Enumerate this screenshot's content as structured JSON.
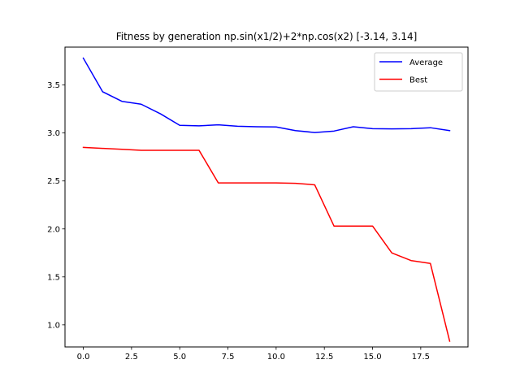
{
  "chart_data": {
    "type": "line",
    "title": "Fitness by generation np.sin(x1/2)+2*np.cos(x2) [-3.14, 3.14]",
    "xlabel": "",
    "ylabel": "",
    "xlim": [
      -0.95,
      19.95
    ],
    "ylim": [
      0.77,
      3.895
    ],
    "x_ticks": [
      0.0,
      2.5,
      5.0,
      7.5,
      10.0,
      12.5,
      15.0,
      17.5
    ],
    "x_tick_labels": [
      "0.0",
      "2.5",
      "5.0",
      "7.5",
      "10.0",
      "12.5",
      "15.0",
      "17.5"
    ],
    "y_ticks": [
      1.0,
      1.5,
      2.0,
      2.5,
      3.0,
      3.5
    ],
    "y_tick_labels": [
      "1.0",
      "1.5",
      "2.0",
      "2.5",
      "3.0",
      "3.5"
    ],
    "grid": false,
    "legend_position": "top-right",
    "x": [
      0,
      1,
      2,
      3,
      4,
      5,
      6,
      7,
      8,
      9,
      10,
      11,
      12,
      13,
      14,
      15,
      16,
      17,
      18,
      19
    ],
    "series": [
      {
        "name": "Average",
        "color": "#0000ff",
        "values": [
          3.78,
          3.43,
          3.33,
          3.3,
          3.2,
          3.08,
          3.075,
          3.085,
          3.07,
          3.065,
          3.063,
          3.025,
          3.005,
          3.02,
          3.065,
          3.045,
          3.043,
          3.045,
          3.055,
          3.025
        ]
      },
      {
        "name": "Best",
        "color": "#ff0000",
        "values": [
          2.85,
          2.84,
          2.83,
          2.82,
          2.82,
          2.82,
          2.82,
          2.48,
          2.48,
          2.48,
          2.48,
          2.475,
          2.46,
          2.03,
          2.03,
          2.03,
          1.75,
          1.67,
          1.64,
          0.83
        ]
      }
    ]
  }
}
